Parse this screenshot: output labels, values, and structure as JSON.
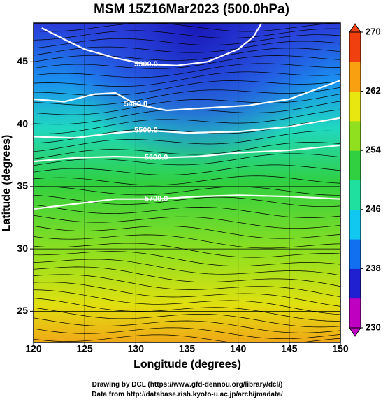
{
  "chart_data": {
    "type": "contour-map",
    "title": "MSM 15Z16Mar2023 (500.0hPa)",
    "x_label": "Longitude (degrees)",
    "y_label": "Latitude  (degrees)",
    "xlim": [
      120,
      150
    ],
    "ylim": [
      22.5,
      48.1
    ],
    "xticks": [
      120,
      125,
      130,
      135,
      140,
      145,
      150
    ],
    "yticks": [
      25,
      30,
      35,
      40,
      45
    ],
    "colorbar": {
      "lim": [
        230,
        270
      ],
      "ticks": [
        230,
        238,
        246,
        254,
        262,
        270
      ],
      "colors": [
        "#c000c0",
        "#2020d0",
        "#1070f0",
        "#10c8f0",
        "#20e0a0",
        "#30d040",
        "#90e020",
        "#e8e810",
        "#f8a010",
        "#f04010"
      ]
    },
    "contours": [
      {
        "label": "5300.0",
        "x": [
          120.8,
          123,
          125,
          128,
          131,
          134,
          137,
          140,
          141.5,
          142.3
        ],
        "y": [
          47.7,
          46.8,
          46.0,
          45.3,
          44.8,
          44.7,
          45.0,
          46.0,
          47.0,
          48.1
        ]
      },
      {
        "label": "5400.0",
        "x": [
          120,
          123,
          126,
          128,
          130,
          133,
          137,
          141,
          145,
          150
        ],
        "y": [
          42.0,
          41.8,
          42.4,
          42.5,
          41.6,
          41.1,
          41.3,
          41.5,
          42.0,
          43.5
        ]
      },
      {
        "label": "5500.0",
        "x": [
          120,
          124,
          128,
          131,
          135,
          140,
          145,
          150
        ],
        "y": [
          39.0,
          38.9,
          39.3,
          39.5,
          39.3,
          39.4,
          39.8,
          40.5
        ]
      },
      {
        "label": "5600.0",
        "x": [
          120,
          124,
          128,
          132,
          136,
          140,
          145,
          150
        ],
        "y": [
          37.0,
          37.3,
          37.4,
          37.3,
          37.4,
          37.7,
          37.9,
          38.3
        ]
      },
      {
        "label": "5700.0",
        "x": [
          120,
          124,
          128,
          132,
          136,
          140,
          145,
          150
        ],
        "y": [
          33.2,
          33.6,
          34.0,
          34.0,
          34.2,
          34.3,
          34.2,
          34.0
        ]
      }
    ],
    "credits": [
      "Drawing by DCL (https://www.gfd-dennou.org/library/dcl/)",
      "Data from http://database.rish.kyoto-u.ac.jp/arch/jmadata/"
    ]
  }
}
